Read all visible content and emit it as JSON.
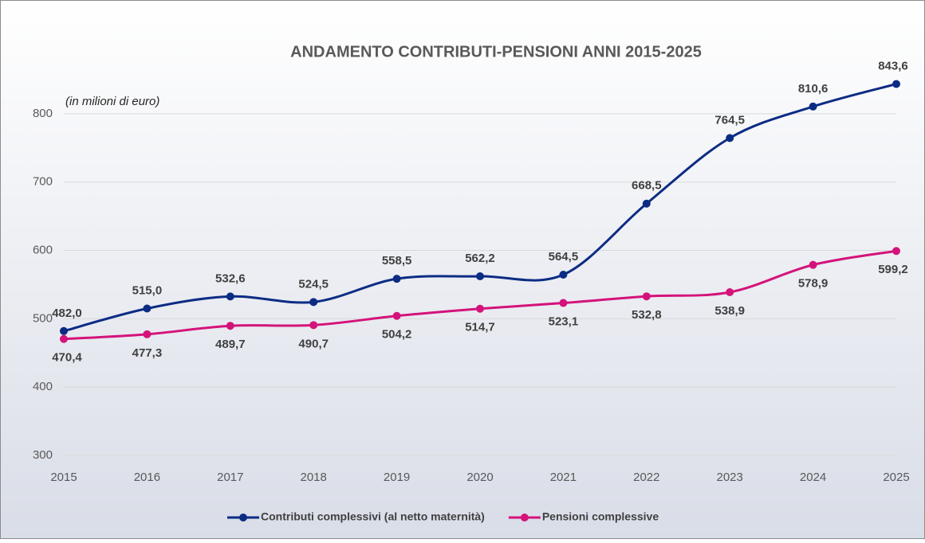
{
  "chart_data": {
    "type": "line",
    "title": "ANDAMENTO CONTRIBUTI-PENSIONI ANNI 2015-2025",
    "subtitle": "(in milioni di euro)",
    "categories": [
      "2015",
      "2016",
      "2017",
      "2018",
      "2019",
      "2020",
      "2021",
      "2022",
      "2023",
      "2024",
      "2025"
    ],
    "series": [
      {
        "name": "Contributi complessivi (al netto maternità)",
        "color": "#0c2c84",
        "values": [
          482.0,
          515.0,
          532.6,
          524.5,
          558.5,
          562.2,
          564.5,
          668.5,
          764.5,
          810.6,
          843.6
        ],
        "value_labels": [
          "482,0",
          "515,0",
          "532,6",
          "524,5",
          "558,5",
          "562,2",
          "564,5",
          "668,5",
          "764,5",
          "810,6",
          "843,6"
        ]
      },
      {
        "name": "Pensioni complessive",
        "color": "#d4137a",
        "values": [
          470.4,
          477.3,
          489.7,
          490.7,
          504.2,
          514.7,
          523.1,
          532.8,
          538.9,
          578.9,
          599.2
        ],
        "value_labels": [
          "470,4",
          "477,3",
          "489,7",
          "490,7",
          "504,2",
          "514,7",
          "523,1",
          "532,8",
          "538,9",
          "578,9",
          "599,2"
        ]
      }
    ],
    "ylim": [
      300,
      850
    ],
    "yticks": [
      300,
      400,
      500,
      600,
      700,
      800
    ],
    "grid": true,
    "legend": "bottom"
  }
}
